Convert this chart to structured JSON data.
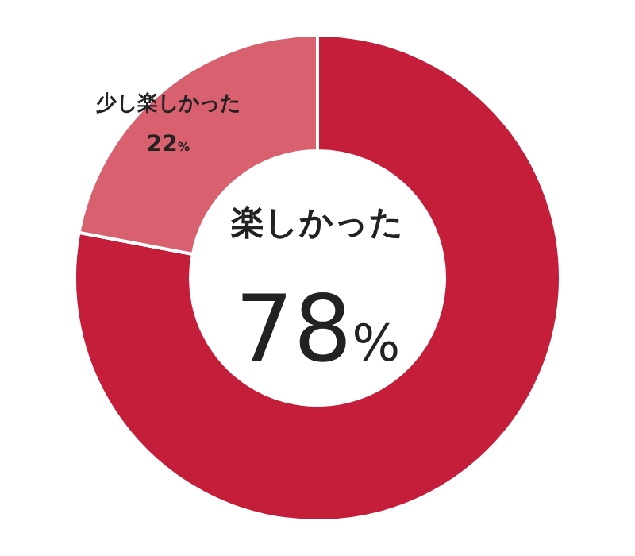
{
  "chart_data": {
    "type": "donut",
    "categories": [
      "楽しかった",
      "少し楽しかった"
    ],
    "values": [
      78,
      22
    ],
    "value_labels": [
      "78%",
      "22%"
    ],
    "colors": [
      "#c41e3a",
      "#d9606f"
    ],
    "legend": false
  }
}
